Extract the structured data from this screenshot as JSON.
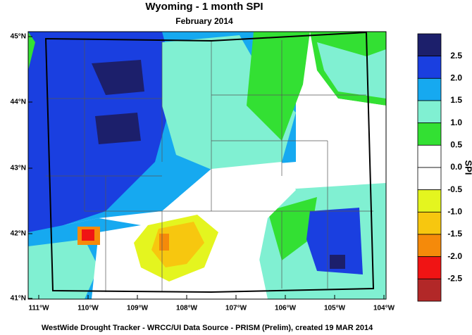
{
  "title": "Wyoming - 1 month SPI",
  "subtitle": "February 2014",
  "lat_labels": [
    "45°N",
    "44°N",
    "43°N",
    "42°N",
    "41°N"
  ],
  "lon_labels": [
    "111°W",
    "110°W",
    "109°W",
    "108°W",
    "107°W",
    "106°W",
    "105°W",
    "104°W"
  ],
  "legend": {
    "title": "SPI",
    "colors": [
      "#1c1f6b",
      "#1a3fe0",
      "#16a9f0",
      "#80f0d2",
      "#33e033",
      "#ffffff",
      "#ffffff",
      "#e4f51f",
      "#f7c70f",
      "#f58a0a",
      "#f01414",
      "#b22828"
    ],
    "labels": [
      "2.5",
      "2.0",
      "1.5",
      "1.0",
      "0.5",
      "0.0",
      "-0.5",
      "-1.0",
      "-1.5",
      "-2.0",
      "-2.5"
    ]
  },
  "footer": "WestWide Drought Tracker - WRCC/UI  Data Source - PRISM (Prelim), created 19 MAR 2014"
}
